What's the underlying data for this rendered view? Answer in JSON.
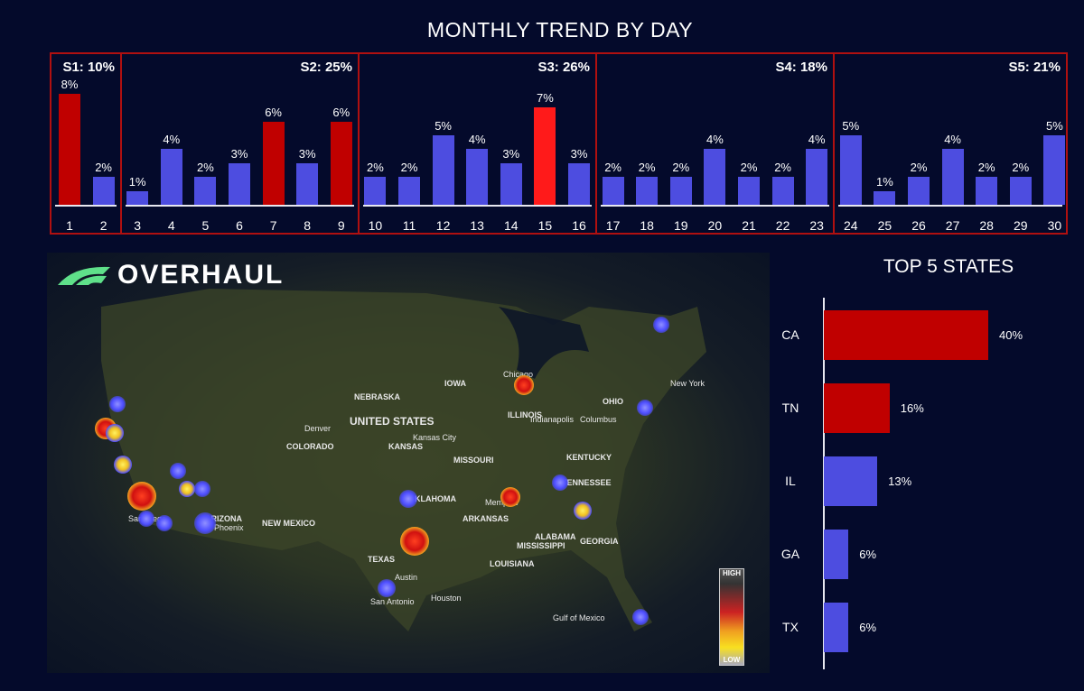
{
  "colors": {
    "background": "#040a2b",
    "highlight": "#c00000",
    "peak": "#ff1a1a",
    "normal": "#4d4de0",
    "segment_border": "#b01010"
  },
  "chart_data": [
    {
      "type": "bar",
      "title": "MONTHLY TREND BY DAY",
      "categories": [
        "1",
        "2",
        "3",
        "4",
        "5",
        "6",
        "7",
        "8",
        "9",
        "10",
        "11",
        "12",
        "13",
        "14",
        "15",
        "16",
        "17",
        "18",
        "19",
        "20",
        "21",
        "22",
        "23",
        "24",
        "25",
        "26",
        "27",
        "28",
        "29",
        "30"
      ],
      "values": [
        8,
        2,
        1,
        4,
        2,
        3,
        6,
        3,
        6,
        2,
        2,
        5,
        4,
        3,
        7,
        3,
        2,
        2,
        2,
        4,
        2,
        2,
        4,
        5,
        1,
        2,
        4,
        2,
        2,
        5
      ],
      "value_labels": [
        "8%",
        "2%",
        "1%",
        "4%",
        "2%",
        "3%",
        "6%",
        "3%",
        "6%",
        "2%",
        "2%",
        "5%",
        "4%",
        "3%",
        "7%",
        "3%",
        "2%",
        "2%",
        "2%",
        "4%",
        "2%",
        "2%",
        "4%",
        "5%",
        "1%",
        "2%",
        "4%",
        "2%",
        "2%",
        "5%"
      ],
      "highlighted_days": [
        "1",
        "7",
        "9",
        "15"
      ],
      "segments": [
        {
          "label": "S1: 10%",
          "days": [
            "1",
            "2"
          ]
        },
        {
          "label": "S2: 25%",
          "days": [
            "3",
            "9"
          ]
        },
        {
          "label": "S3: 26%",
          "days": [
            "10",
            "16"
          ]
        },
        {
          "label": "S4: 18%",
          "days": [
            "17",
            "23"
          ]
        },
        {
          "label": "S5: 21%",
          "days": [
            "24",
            "30"
          ]
        }
      ],
      "ylim": [
        0,
        8
      ]
    },
    {
      "type": "bar",
      "orientation": "horizontal",
      "title": "TOP 5 STATES",
      "categories": [
        "CA",
        "TN",
        "IL",
        "GA",
        "TX"
      ],
      "values": [
        40,
        16,
        13,
        6,
        6
      ],
      "value_labels": [
        "40%",
        "16%",
        "13%",
        "6%",
        "6%"
      ],
      "highlighted": [
        "CA",
        "TN"
      ]
    }
  ],
  "map": {
    "logo": "OVERHAUL",
    "labels": [
      "UNITED STATES",
      "TEXAS",
      "Austin",
      "Houston",
      "San Antonio",
      "Denver",
      "Kansas City",
      "KANSAS",
      "NEBRASKA",
      "COLORADO",
      "MISSOURI",
      "ARKANSAS",
      "OKLAHOMA",
      "NEW MEXICO",
      "ARIZONA",
      "Indianapolis",
      "Columbus",
      "ILLINOIS",
      "OHIO",
      "KENTUCKY",
      "TENNESSEE",
      "ALABAMA",
      "GEORGIA",
      "LOUISIANA",
      "MISSISSIPPI",
      "Memphis",
      "New York",
      "IOWA",
      "Chicago",
      "Gulf of Mexico",
      "San Diego",
      "Phoenix"
    ],
    "legend": {
      "high": "HIGH",
      "low": "LOW"
    }
  }
}
